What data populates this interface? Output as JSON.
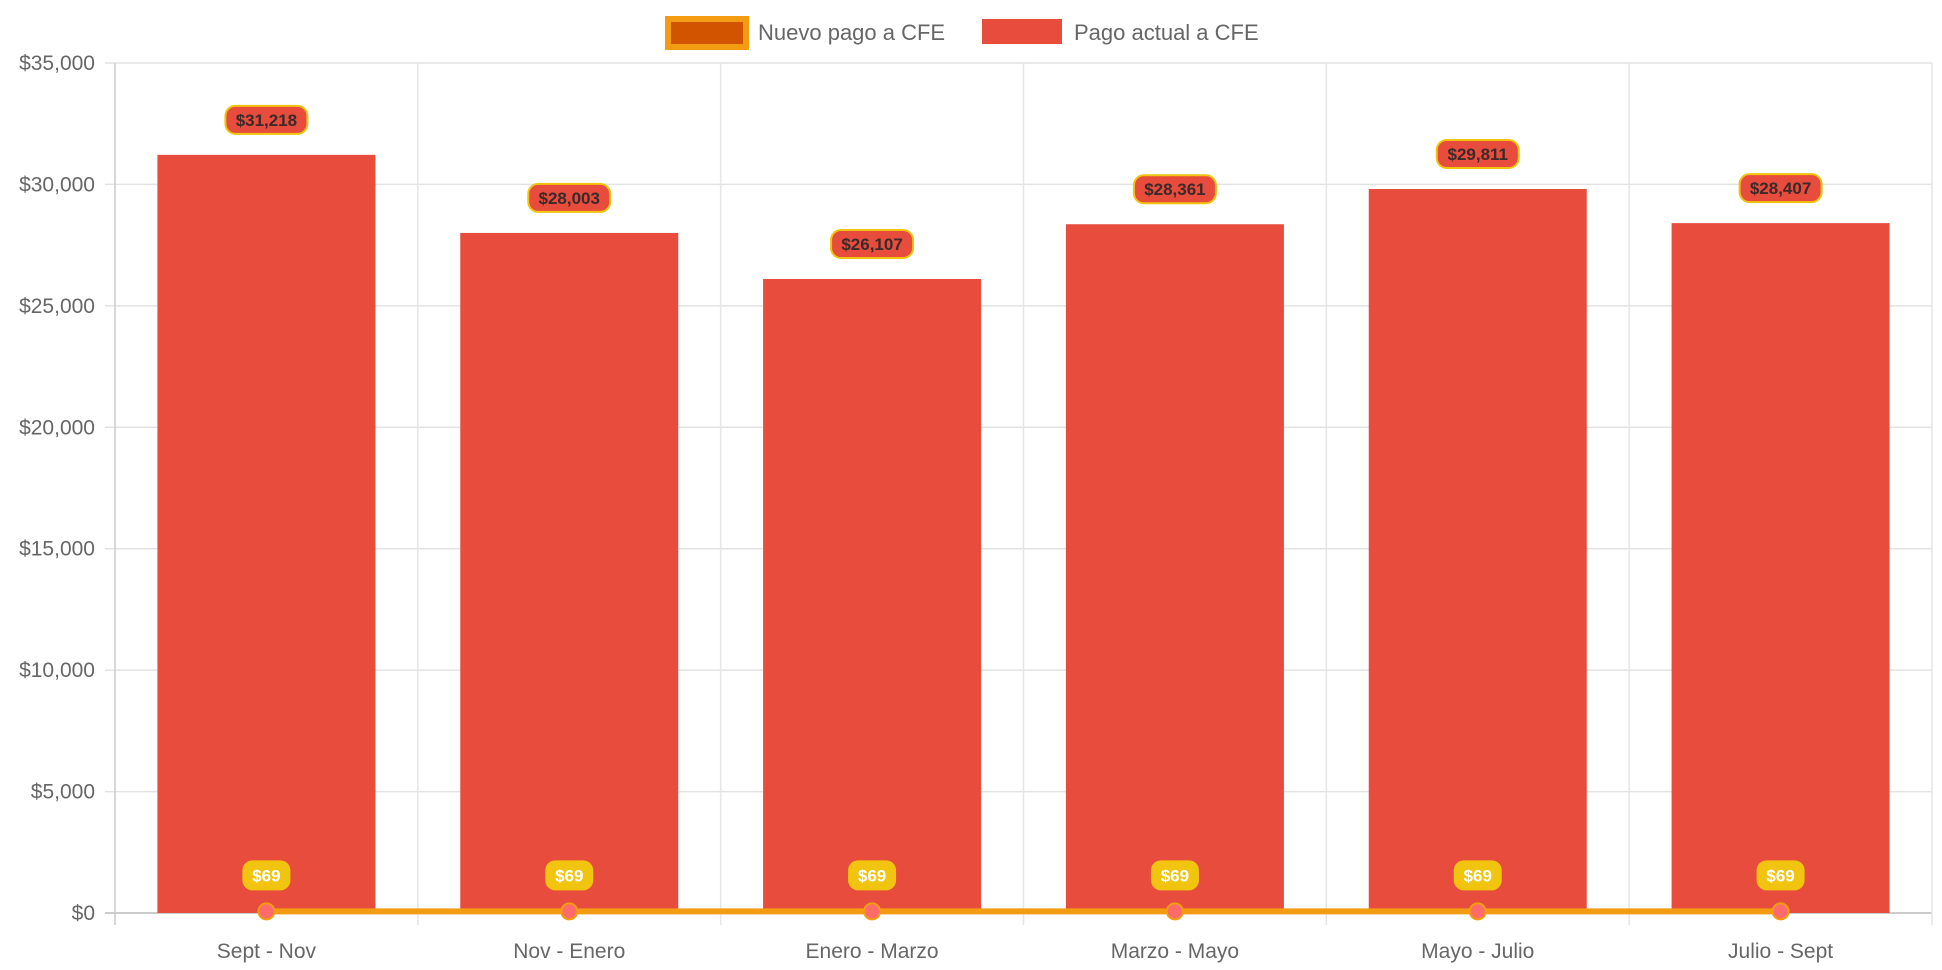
{
  "chart_data": {
    "type": "bar",
    "title": "",
    "xlabel": "",
    "ylabel": "",
    "ylim": [
      0,
      35000
    ],
    "yticks": [
      0,
      5000,
      10000,
      15000,
      20000,
      25000,
      30000,
      35000
    ],
    "ytick_labels": [
      "$0",
      "$5,000",
      "$10,000",
      "$15,000",
      "$20,000",
      "$25,000",
      "$30,000",
      "$35,000"
    ],
    "grid": true,
    "legend_position": "top-center",
    "categories": [
      "Sept - Nov",
      "Nov - Enero",
      "Enero - Marzo",
      "Marzo - Mayo",
      "Mayo - Julio",
      "Julio - Sept"
    ],
    "series": [
      {
        "name": "Nuevo pago a CFE",
        "type": "line",
        "values": [
          69,
          69,
          69,
          69,
          69,
          69
        ],
        "labels": [
          "$69",
          "$69",
          "$69",
          "$69",
          "$69",
          "$69"
        ],
        "color": "#f39c12",
        "fill_color": "#d35400",
        "point_color": "#ff6b6b",
        "label_bg": "#f1c40f"
      },
      {
        "name": "Pago actual a CFE",
        "type": "bar",
        "values": [
          31218,
          28003,
          26107,
          28361,
          29811,
          28407
        ],
        "labels": [
          "$31,218",
          "$28,003",
          "$26,107",
          "$28,361",
          "$29,811",
          "$28,407"
        ],
        "color": "#e74c3c",
        "label_border": "#f1c40f"
      }
    ]
  }
}
